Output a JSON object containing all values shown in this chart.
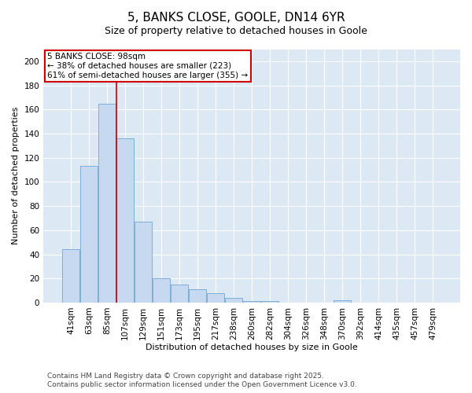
{
  "title": "5, BANKS CLOSE, GOOLE, DN14 6YR",
  "subtitle": "Size of property relative to detached houses in Goole",
  "xlabel": "Distribution of detached houses by size in Goole",
  "ylabel": "Number of detached properties",
  "categories": [
    "41sqm",
    "63sqm",
    "85sqm",
    "107sqm",
    "129sqm",
    "151sqm",
    "173sqm",
    "195sqm",
    "217sqm",
    "238sqm",
    "260sqm",
    "282sqm",
    "304sqm",
    "326sqm",
    "348sqm",
    "370sqm",
    "392sqm",
    "414sqm",
    "435sqm",
    "457sqm",
    "479sqm"
  ],
  "values": [
    44,
    113,
    165,
    136,
    67,
    20,
    15,
    11,
    8,
    4,
    1,
    1,
    0,
    0,
    0,
    2,
    0,
    0,
    0,
    0,
    0
  ],
  "bar_color": "#c6d9f0",
  "bar_edge_color": "#7bafd4",
  "fig_bg_color": "#ffffff",
  "ax_bg_color": "#dce9f5",
  "grid_color": "#ffffff",
  "red_line_x": 2.5,
  "annotation_title": "5 BANKS CLOSE: 98sqm",
  "annotation_line1": "← 38% of detached houses are smaller (223)",
  "annotation_line2": "61% of semi-detached houses are larger (355) →",
  "annotation_box_facecolor": "#ffffff",
  "annotation_box_edgecolor": "#cc0000",
  "footnote1": "Contains HM Land Registry data © Crown copyright and database right 2025.",
  "footnote2": "Contains public sector information licensed under the Open Government Licence v3.0.",
  "ylim": [
    0,
    210
  ],
  "yticks": [
    0,
    20,
    40,
    60,
    80,
    100,
    120,
    140,
    160,
    180,
    200
  ],
  "title_fontsize": 11,
  "subtitle_fontsize": 9,
  "axis_label_fontsize": 8,
  "tick_fontsize": 7.5,
  "annotation_fontsize": 7.5,
  "footnote_fontsize": 6.5
}
